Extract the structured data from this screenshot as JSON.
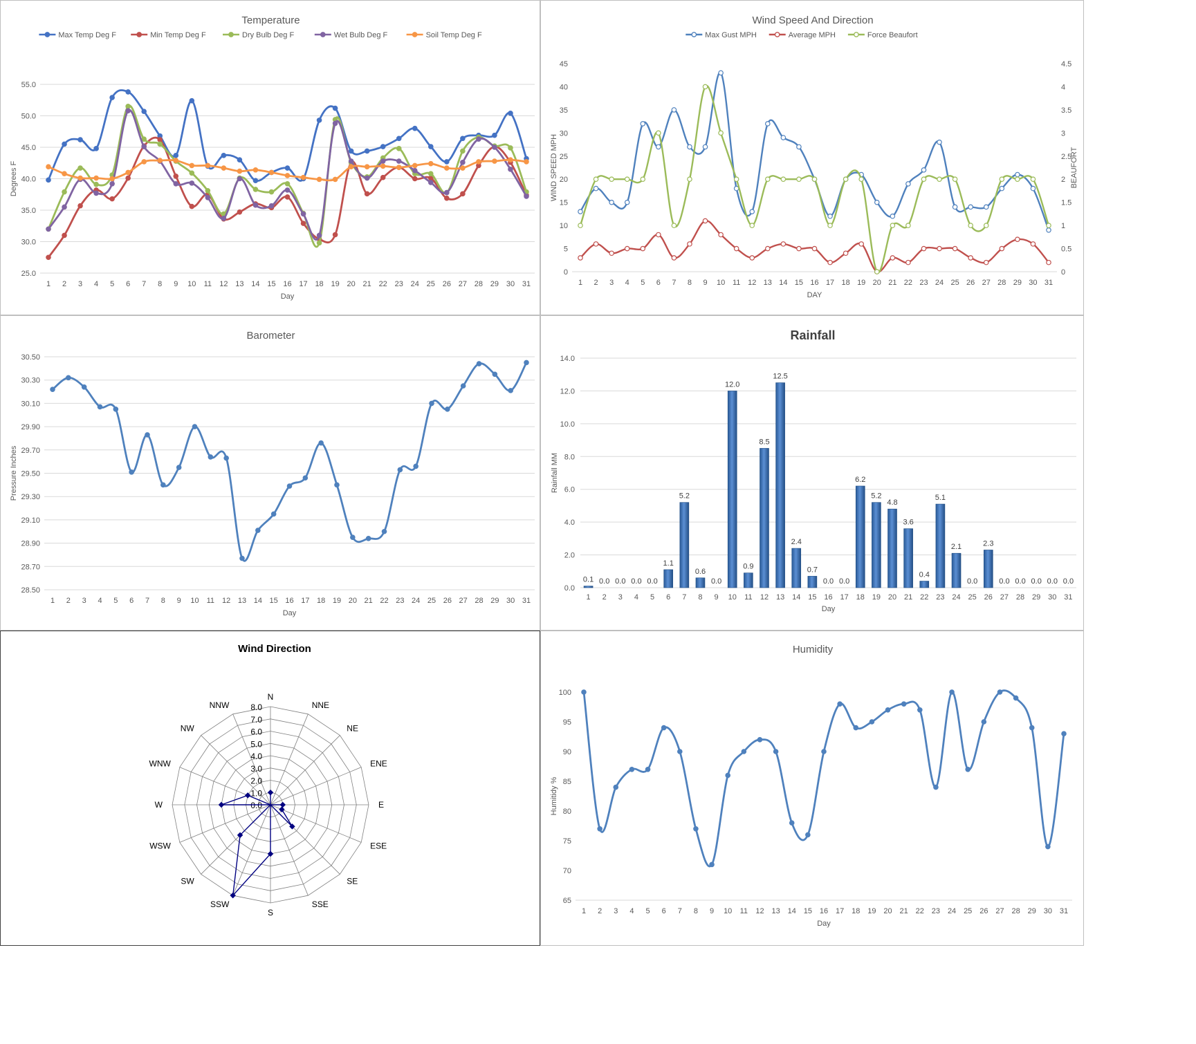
{
  "chart_data": [
    {
      "type": "line",
      "title": "Temperature",
      "xlabel": "Day",
      "ylabel": "Degrees F",
      "ylim": [
        25,
        55
      ],
      "yticks": [
        "25.0",
        "30.0",
        "35.0",
        "40.0",
        "45.0",
        "50.0",
        "55.0"
      ],
      "grid": true,
      "legend_position": "top",
      "categories": [
        "1",
        "2",
        "3",
        "4",
        "5",
        "6",
        "7",
        "8",
        "9",
        "10",
        "11",
        "12",
        "13",
        "14",
        "15",
        "16",
        "17",
        "18",
        "19",
        "20",
        "21",
        "22",
        "23",
        "24",
        "25",
        "26",
        "27",
        "28",
        "29",
        "30",
        "31"
      ],
      "series": [
        {
          "name": "Max Temp Deg F",
          "color": "#4472C4",
          "values": [
            39.8,
            45.5,
            46.2,
            44.8,
            52.9,
            53.8,
            50.7,
            46.8,
            43.7,
            52.4,
            42.0,
            43.7,
            43.0,
            39.7,
            41.0,
            41.7,
            40.0,
            49.3,
            51.2,
            44.4,
            44.4,
            45.1,
            46.4,
            48.0,
            45.1,
            42.7,
            46.4,
            46.9,
            46.9,
            50.4,
            43.2
          ]
        },
        {
          "name": "Min Temp Deg F",
          "color": "#C0504D",
          "values": [
            27.5,
            31.0,
            35.7,
            38.2,
            36.8,
            40.1,
            45.2,
            46.2,
            40.4,
            35.6,
            37.5,
            33.6,
            34.7,
            36.0,
            35.4,
            37.1,
            32.9,
            30.4,
            31.1,
            42.6,
            37.6,
            40.2,
            41.8,
            40.0,
            40.1,
            36.9,
            37.6,
            42.1,
            45.1,
            42.6,
            37.4
          ]
        },
        {
          "name": "Dry Bulb Deg F",
          "color": "#9BBB59",
          "values": [
            32.0,
            37.9,
            41.7,
            39.1,
            40.6,
            51.5,
            46.3,
            45.5,
            42.8,
            40.9,
            38.1,
            34.4,
            40.1,
            38.3,
            37.9,
            39.2,
            34.5,
            29.8,
            49.4,
            42.6,
            40.3,
            43.3,
            44.8,
            40.8,
            40.8,
            37.8,
            44.4,
            46.6,
            45.2,
            44.9,
            37.9
          ]
        },
        {
          "name": "Wet Bulb Deg F",
          "color": "#8064A2",
          "values": [
            32.0,
            35.5,
            39.9,
            37.7,
            39.2,
            50.8,
            45.1,
            42.8,
            39.2,
            39.3,
            37.0,
            33.7,
            40.0,
            35.8,
            35.7,
            38.2,
            34.4,
            31.0,
            48.8,
            42.8,
            40.1,
            42.8,
            42.8,
            41.3,
            39.4,
            37.8,
            42.6,
            46.3,
            45.0,
            41.5,
            37.2
          ]
        },
        {
          "name": "Soil Temp Deg F",
          "color": "#F79646",
          "values": [
            41.9,
            40.8,
            40.1,
            40.1,
            40.0,
            41.0,
            42.7,
            42.9,
            42.9,
            42.1,
            42.1,
            41.7,
            41.2,
            41.4,
            41.0,
            40.5,
            40.2,
            39.9,
            39.9,
            41.9,
            41.9,
            42.0,
            41.8,
            42.1,
            42.4,
            41.7,
            41.7,
            42.7,
            42.8,
            43.0,
            42.7
          ]
        }
      ]
    },
    {
      "type": "line",
      "title": "Wind Speed And Direction",
      "xlabel": "DAY",
      "ylabel": "WIND SPEED MPH",
      "y2label": "BEAUFORT",
      "ylim": [
        0,
        45
      ],
      "y2lim": [
        0,
        4.5
      ],
      "yticks": [
        "0",
        "5",
        "10",
        "15",
        "20",
        "25",
        "30",
        "35",
        "40",
        "45"
      ],
      "y2ticks": [
        "0",
        "0.5",
        "1",
        "1.5",
        "2",
        "2.5",
        "3",
        "3.5",
        "4",
        "4.5"
      ],
      "grid": false,
      "legend_position": "top",
      "categories": [
        "1",
        "2",
        "3",
        "4",
        "5",
        "6",
        "7",
        "8",
        "9",
        "10",
        "11",
        "12",
        "13",
        "14",
        "15",
        "16",
        "17",
        "18",
        "19",
        "20",
        "21",
        "22",
        "23",
        "24",
        "25",
        "26",
        "27",
        "28",
        "29",
        "30",
        "31"
      ],
      "series": [
        {
          "name": "Max Gust MPH",
          "color": "#4F81BD",
          "axis": "left",
          "values": [
            13,
            18,
            15,
            15,
            32,
            27,
            35,
            27,
            27,
            43,
            18,
            13,
            32,
            29,
            27,
            20,
            12,
            20,
            21,
            15,
            12,
            19,
            22,
            28,
            14,
            14,
            14,
            18,
            21,
            18,
            9
          ]
        },
        {
          "name": "Average MPH",
          "color": "#C0504D",
          "axis": "left",
          "values": [
            3,
            6,
            4,
            5,
            5,
            8,
            3,
            6,
            11,
            8,
            5,
            3,
            5,
            6,
            5,
            5,
            2,
            4,
            6,
            0,
            3,
            2,
            5,
            5,
            5,
            3,
            2,
            5,
            7,
            6,
            2
          ]
        },
        {
          "name": "Force Beaufort",
          "color": "#9BBB59",
          "axis": "right",
          "values": [
            1,
            2,
            2,
            2,
            2,
            3,
            1,
            2,
            4,
            3,
            2,
            1,
            2,
            2,
            2,
            2,
            1,
            2,
            2,
            0,
            1,
            1,
            2,
            2,
            2,
            1,
            1,
            2,
            2,
            2,
            1
          ]
        }
      ]
    },
    {
      "type": "line",
      "title": "Barometer",
      "xlabel": "Day",
      "ylabel": "Pressure Inches",
      "ylim": [
        28.5,
        30.5
      ],
      "yticks": [
        "28.50",
        "28.70",
        "28.90",
        "29.10",
        "29.30",
        "29.50",
        "29.70",
        "29.90",
        "30.10",
        "30.30",
        "30.50"
      ],
      "grid": true,
      "categories": [
        "1",
        "2",
        "3",
        "4",
        "5",
        "6",
        "7",
        "8",
        "9",
        "10",
        "11",
        "12",
        "13",
        "14",
        "15",
        "16",
        "17",
        "18",
        "19",
        "20",
        "21",
        "22",
        "23",
        "24",
        "25",
        "26",
        "27",
        "28",
        "29",
        "30",
        "31"
      ],
      "series": [
        {
          "name": "",
          "color": "#4F81BD",
          "values": [
            30.22,
            30.32,
            30.24,
            30.07,
            30.05,
            29.51,
            29.83,
            29.4,
            29.55,
            29.9,
            29.64,
            29.63,
            28.77,
            29.01,
            29.15,
            29.39,
            29.46,
            29.76,
            29.4,
            28.95,
            28.94,
            29.0,
            29.53,
            29.56,
            30.1,
            30.05,
            30.25,
            30.44,
            30.35,
            30.21,
            30.45
          ]
        }
      ]
    },
    {
      "type": "bar",
      "title": "Rainfall",
      "xlabel": "Day",
      "ylabel": "Rainfall MM",
      "ylim": [
        0,
        14
      ],
      "yticks": [
        "0.0",
        "2.0",
        "4.0",
        "6.0",
        "8.0",
        "10.0",
        "12.0",
        "14.0"
      ],
      "grid": true,
      "categories": [
        "1",
        "2",
        "3",
        "4",
        "5",
        "6",
        "7",
        "8",
        "9",
        "10",
        "11",
        "12",
        "13",
        "14",
        "15",
        "16",
        "17",
        "18",
        "19",
        "20",
        "21",
        "22",
        "23",
        "24",
        "25",
        "26",
        "27",
        "28",
        "29",
        "30",
        "31"
      ],
      "values": [
        0.1,
        0.0,
        0.0,
        0.0,
        0.0,
        1.1,
        5.2,
        0.6,
        0.0,
        12.0,
        0.9,
        8.5,
        12.5,
        2.4,
        0.7,
        0.0,
        0.0,
        6.2,
        5.2,
        4.8,
        3.6,
        0.4,
        5.1,
        2.1,
        0.0,
        2.3,
        0.0,
        0.0,
        0.0,
        0.0,
        0.0
      ],
      "labels": [
        "0.1",
        "0.0",
        "0.0",
        "0.0",
        "0.0",
        "1.1",
        "5.2",
        "0.6",
        "0.0",
        "12.0",
        "0.9",
        "8.5",
        "12.5",
        "2.4",
        "0.7",
        "0.0",
        "0.0",
        "6.2",
        "5.2",
        "4.8",
        "3.6",
        "0.4",
        "5.1",
        "2.1",
        "0.0",
        "2.3",
        "0.0",
        "0.0",
        "0.0",
        "0.0",
        "0.0"
      ],
      "color": "#4F81BD"
    },
    {
      "type": "radar",
      "title": "Wind Direction",
      "rlim": [
        0,
        8
      ],
      "rticks": [
        "0.0",
        "1.0",
        "2.0",
        "3.0",
        "4.0",
        "5.0",
        "6.0",
        "7.0",
        "8.0"
      ],
      "categories": [
        "N",
        "NNE",
        "NE",
        "ENE",
        "E",
        "ESE",
        "SE",
        "SSE",
        "S",
        "SSW",
        "SW",
        "WSW",
        "W",
        "WNW",
        "NW",
        "NNW"
      ],
      "values": [
        1.0,
        0.0,
        0.0,
        0.0,
        1.0,
        1.0,
        2.5,
        0.0,
        4.0,
        8.0,
        3.5,
        0.0,
        4.0,
        2.0,
        0.0,
        0.0
      ],
      "color": "#000080"
    },
    {
      "type": "line",
      "title": "Humidity",
      "xlabel": "Day",
      "ylabel": "Humitidy %",
      "ylim": [
        65,
        100
      ],
      "yticks": [
        "65",
        "70",
        "75",
        "80",
        "85",
        "90",
        "95",
        "100"
      ],
      "grid": false,
      "categories": [
        "1",
        "2",
        "3",
        "4",
        "5",
        "6",
        "7",
        "8",
        "9",
        "10",
        "11",
        "12",
        "13",
        "14",
        "15",
        "16",
        "17",
        "18",
        "19",
        "20",
        "21",
        "22",
        "23",
        "24",
        "25",
        "26",
        "27",
        "28",
        "29",
        "30",
        "31"
      ],
      "series": [
        {
          "name": "",
          "color": "#4F81BD",
          "values": [
            100,
            77,
            84,
            87,
            87,
            94,
            90,
            77,
            71,
            86,
            90,
            92,
            90,
            78,
            76,
            90,
            98,
            94,
            95,
            97,
            98,
            97,
            84,
            100,
            87,
            95,
            100,
            99,
            94,
            74,
            93
          ]
        }
      ]
    }
  ]
}
